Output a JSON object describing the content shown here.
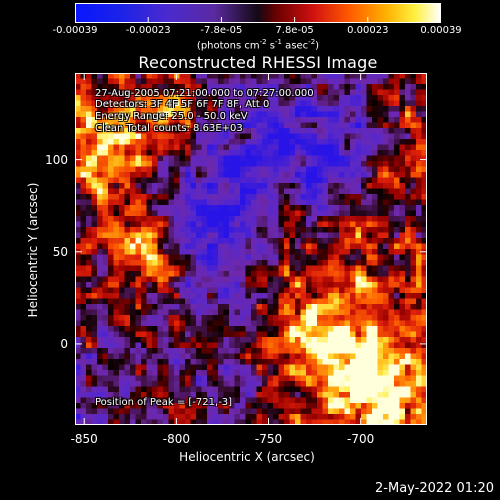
{
  "colorbar": {
    "tick_labels": [
      "-0.00039",
      "-0.00023",
      "-7.8e-05",
      "7.8e-05",
      "0.00023",
      "0.00039"
    ],
    "units_prefix": "(photons cm",
    "units_sup1": "-2",
    "units_mid": " s",
    "units_sup2": "-1",
    "units_mid2": " asec",
    "units_sup3": "-2",
    "units_suffix": ")",
    "range": [
      -0.00039,
      0.00039
    ]
  },
  "chart_data": {
    "type": "heatmap",
    "title": "Reconstructed RHESSI Image",
    "xlabel": "Heliocentric X (arcsec)",
    "ylabel": "Heliocentric Y (arcsec)",
    "x_ticks": [
      "-850",
      "-800",
      "-750",
      "-700"
    ],
    "y_ticks": [
      "0",
      "50",
      "100"
    ],
    "xlim": [
      -855,
      -664
    ],
    "ylim": [
      -44,
      147
    ],
    "annotations": {
      "time": "27-Aug-2005 07:21:00.000 to 07:27:00.000",
      "detectors": "Detectors: 3F 4F 5F 6F 7F 8F, Att 0",
      "energy": "Energy Range: 25.0 - 50.0 keV",
      "method": "Clean     Total counts: 8.63E+03",
      "peak": "Position of Peak = [-721,-3]"
    },
    "peak_position": [
      -721,
      -3
    ]
  },
  "footer": {
    "date": "2-May-2022 01:20"
  }
}
